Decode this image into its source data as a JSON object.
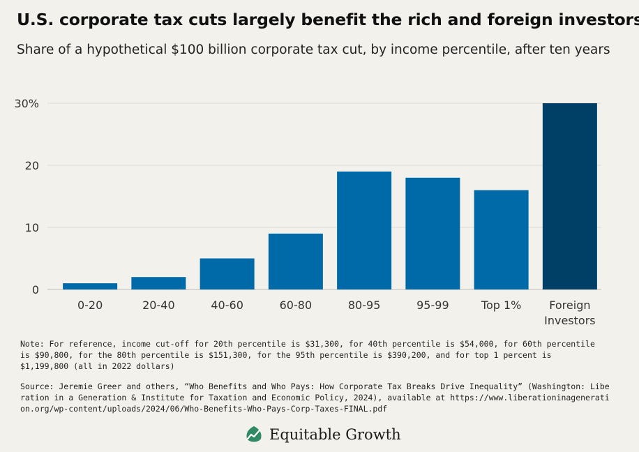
{
  "chart_data": {
    "type": "bar",
    "title": "U.S. corporate tax cuts largely benefit the rich and foreign investors",
    "subtitle": "Share of a hypothetical $100 billion corporate tax cut, by income percentile, after ten years",
    "categories": [
      "0-20",
      "20-40",
      "40-60",
      "60-80",
      "80-95",
      "95-99",
      "Top 1%",
      "Foreign Investors"
    ],
    "category_lines": [
      [
        "0-20"
      ],
      [
        "20-40"
      ],
      [
        "40-60"
      ],
      [
        "60-80"
      ],
      [
        "80-95"
      ],
      [
        "95-99"
      ],
      [
        "Top 1%"
      ],
      [
        "Foreign",
        "Investors"
      ]
    ],
    "values": [
      1,
      2,
      5,
      9,
      19,
      18,
      16,
      30
    ],
    "bar_colors": [
      "#006aa8",
      "#006aa8",
      "#006aa8",
      "#006aa8",
      "#006aa8",
      "#006aa8",
      "#006aa8",
      "#003f66"
    ],
    "yticks": [
      "0",
      "10",
      "20",
      "30%"
    ],
    "ytick_values": [
      0,
      10,
      20,
      30
    ],
    "ylim": [
      0,
      30
    ],
    "xlabel": "",
    "ylabel": "",
    "grid": true
  },
  "note": "Note: For reference, income cut-off for 20th percentile is $31,300, for 40th percentile is $54,000, for 60th percentile is $90,800, for the 80th percentile is $151,300, for the 95th percentile is $390,200, and for top 1 percent is $1,199,800 (all in 2022 dollars)",
  "source": "Source: Jeremie Greer and others, “Who Benefits and Who Pays: How Corporate Tax Breaks Drive Inequality” (Washington: Liberation in a Generation & Institute for Taxation and Economic Policy, 2024), available at https://www.liberationinageneration.org/wp-content/uploads/2024/06/Who-Benefits-Who-Pays-Corp-Taxes-FINAL.pdf",
  "logo": {
    "text": "Equitable Growth",
    "icon": "equitable-growth-leaf-icon"
  }
}
